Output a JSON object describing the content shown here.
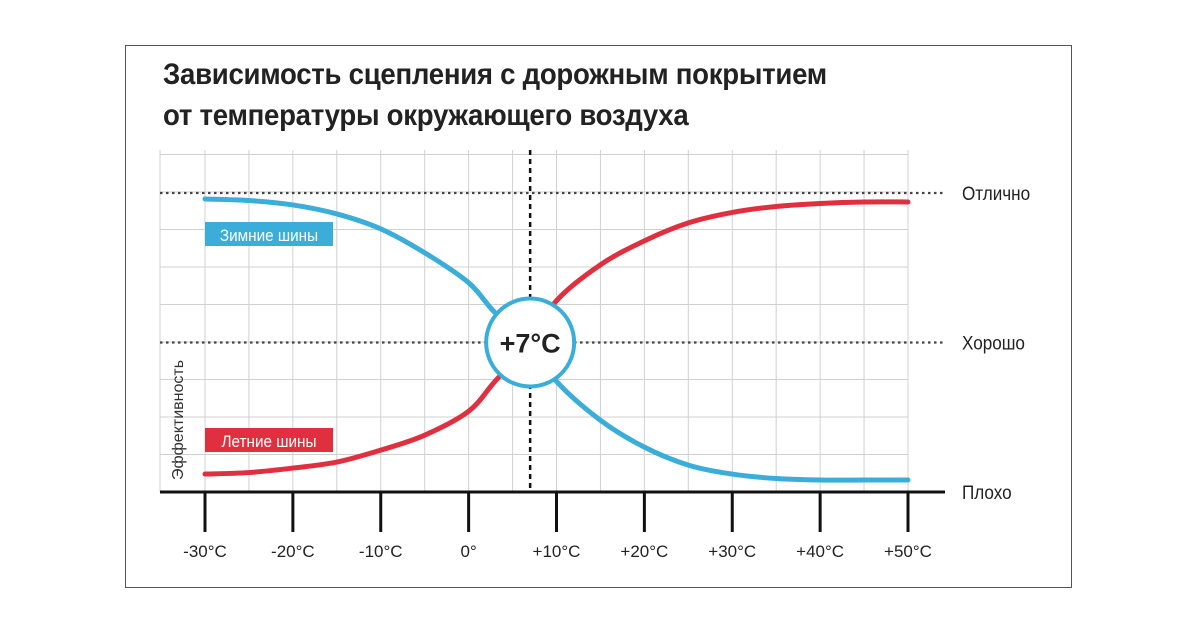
{
  "chart_data": {
    "type": "line",
    "title": [
      "Зависимость сцепления с дорожным покрытием",
      "от температуры окружающего воздуха"
    ],
    "xlabel": "",
    "ylabel": "Эффективность",
    "x_ticks": [
      -30,
      -20,
      -10,
      0,
      10,
      20,
      30,
      40,
      50
    ],
    "x_tick_labels": [
      "-30°C",
      "-20°C",
      "-10°C",
      "0°",
      "+10°C",
      "+20°C",
      "+30°C",
      "+40°C",
      "+50°C"
    ],
    "xlim": [
      -30,
      50
    ],
    "ylim": [
      0,
      1
    ],
    "y_levels": [
      {
        "label": "Отлично",
        "value": 1.0
      },
      {
        "label": "Хорошо",
        "value": 0.5
      },
      {
        "label": "Плохо",
        "value": 0.0
      }
    ],
    "grid": true,
    "crossover": {
      "x": 7,
      "label": "+7°C"
    },
    "series": [
      {
        "name": "Зимние шины",
        "color": "#3aaed8",
        "label_bg": "#3aaed8",
        "points": [
          [
            -30,
            0.98
          ],
          [
            -25,
            0.975
          ],
          [
            -20,
            0.96
          ],
          [
            -15,
            0.93
          ],
          [
            -10,
            0.88
          ],
          [
            -5,
            0.8
          ],
          [
            0,
            0.7
          ],
          [
            3,
            0.6
          ],
          [
            7,
            0.5
          ],
          [
            10,
            0.37
          ],
          [
            15,
            0.24
          ],
          [
            20,
            0.15
          ],
          [
            25,
            0.09
          ],
          [
            30,
            0.06
          ],
          [
            35,
            0.045
          ],
          [
            40,
            0.04
          ],
          [
            45,
            0.04
          ],
          [
            50,
            0.04
          ]
        ]
      },
      {
        "name": "Летние шины",
        "color": "#e03040",
        "label_bg": "#e03040",
        "points": [
          [
            -30,
            0.06
          ],
          [
            -25,
            0.065
          ],
          [
            -20,
            0.08
          ],
          [
            -15,
            0.1
          ],
          [
            -10,
            0.14
          ],
          [
            -5,
            0.19
          ],
          [
            0,
            0.27
          ],
          [
            3,
            0.37
          ],
          [
            7,
            0.5
          ],
          [
            10,
            0.64
          ],
          [
            15,
            0.76
          ],
          [
            20,
            0.84
          ],
          [
            25,
            0.9
          ],
          [
            30,
            0.935
          ],
          [
            35,
            0.955
          ],
          [
            40,
            0.965
          ],
          [
            45,
            0.97
          ],
          [
            50,
            0.97
          ]
        ]
      }
    ]
  }
}
